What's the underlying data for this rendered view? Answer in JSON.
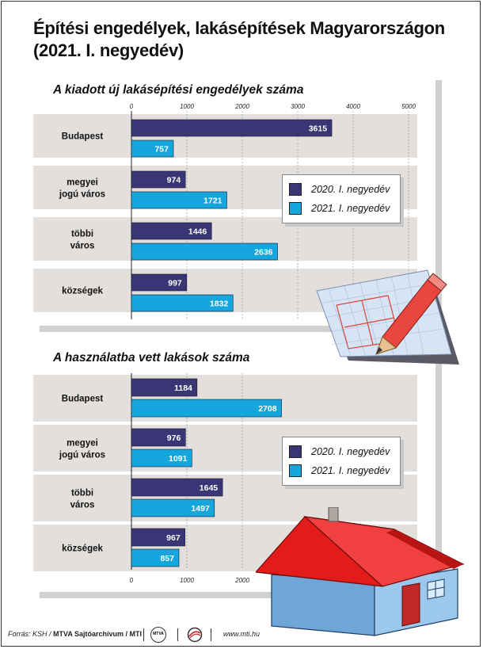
{
  "title_line1": "Építési engedélyek, lakásépítések Magyarországon",
  "title_line2": "(2021. I. negyedév)",
  "colors": {
    "y2020": "#3a3575",
    "y2021": "#14a6dd",
    "band": "#e2dfdc"
  },
  "legend": {
    "s2020": "2020. I. negyedév",
    "s2021": "2021. I. negyedév"
  },
  "chart_data": [
    {
      "type": "bar",
      "orientation": "horizontal",
      "title": "A kiadott új lakásépítési engedélyek száma",
      "xlim": [
        0,
        5000
      ],
      "ticks": [
        "0",
        "1000",
        "2000",
        "3000",
        "4000",
        "5000"
      ],
      "categories": [
        {
          "line1": "Budapest",
          "line2": ""
        },
        {
          "line1": "megyei",
          "line2": "jogú város"
        },
        {
          "line1": "többi",
          "line2": "város"
        },
        {
          "line1": "községek",
          "line2": ""
        }
      ],
      "series": [
        {
          "name": "2020. I. negyedév",
          "values": [
            3615,
            974,
            1446,
            997
          ]
        },
        {
          "name": "2021. I. negyedév",
          "values": [
            757,
            1721,
            2636,
            1832
          ]
        }
      ]
    },
    {
      "type": "bar",
      "orientation": "horizontal",
      "title": "A használatba vett lakások száma",
      "xlim": [
        0,
        5000
      ],
      "ticks": [
        "0",
        "1000",
        "2000"
      ],
      "categories": [
        {
          "line1": "Budapest",
          "line2": ""
        },
        {
          "line1": "megyei",
          "line2": "jogú város"
        },
        {
          "line1": "többi",
          "line2": "város"
        },
        {
          "line1": "községek",
          "line2": ""
        }
      ],
      "series": [
        {
          "name": "2020. I. negyedév",
          "values": [
            1184,
            976,
            1645,
            967
          ]
        },
        {
          "name": "2021. I. negyedév",
          "values": [
            2708,
            1091,
            1497,
            857
          ]
        }
      ]
    }
  ],
  "footer": {
    "source": "Forrás: KSH /",
    "archive": "MTVA Sajtóarchívum / MTI",
    "logo1": "MTVA",
    "site": "www.mti.hu"
  }
}
